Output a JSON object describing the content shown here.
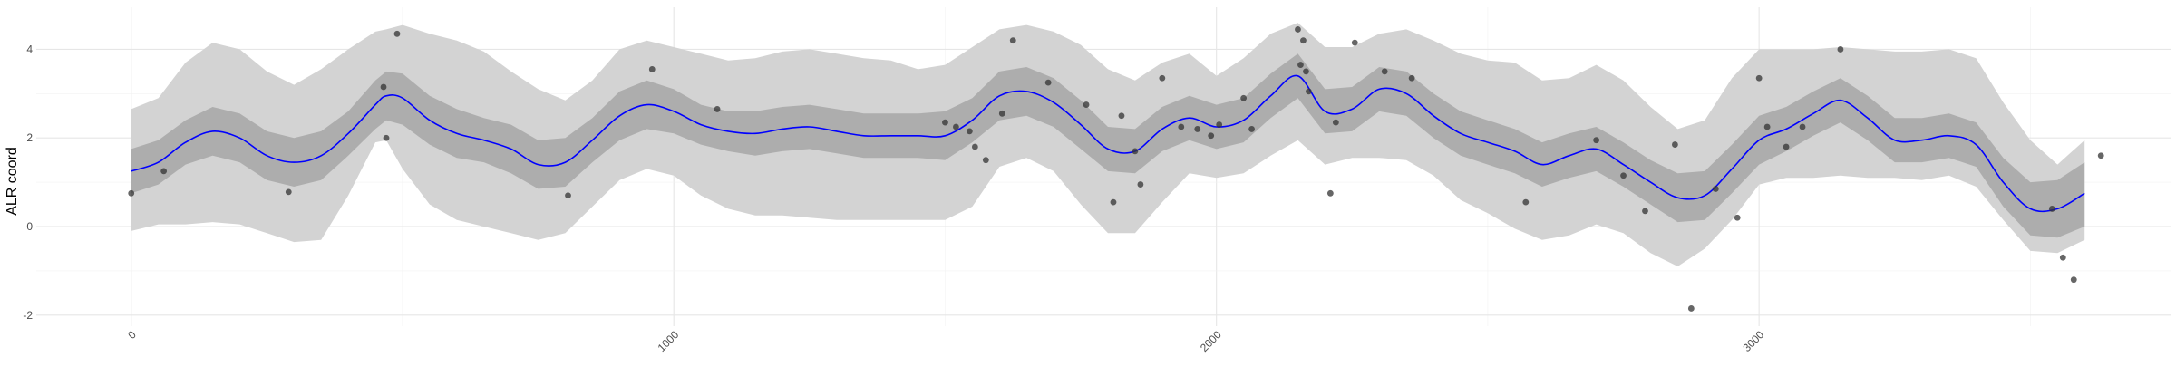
{
  "chart_data": {
    "type": "line",
    "title": "",
    "xlabel": "",
    "ylabel": "ALR coord",
    "xlim": [
      -175,
      3760
    ],
    "ylim": [
      -2.25,
      4.95
    ],
    "x_ticks": [
      0,
      1000,
      2000,
      3000
    ],
    "x_tick_labels": [
      "0",
      "1000",
      "2000",
      "3000"
    ],
    "y_ticks": [
      -2,
      0,
      2,
      4
    ],
    "y_tick_labels": [
      "-2",
      "0",
      "2",
      "4"
    ],
    "grid": true,
    "legend": "none",
    "series": [
      {
        "kind": "smooth_line",
        "color": "#0000ff",
        "x": [
          0,
          50,
          100,
          150,
          200,
          250,
          300,
          350,
          400,
          450,
          470,
          500,
          550,
          600,
          650,
          700,
          750,
          800,
          850,
          900,
          950,
          1000,
          1050,
          1100,
          1150,
          1200,
          1250,
          1300,
          1350,
          1400,
          1450,
          1500,
          1550,
          1600,
          1650,
          1700,
          1750,
          1800,
          1850,
          1900,
          1950,
          2000,
          2050,
          2100,
          2150,
          2200,
          2250,
          2300,
          2350,
          2400,
          2450,
          2500,
          2550,
          2600,
          2650,
          2700,
          2750,
          2800,
          2850,
          2900,
          2950,
          3000,
          3050,
          3100,
          3150,
          3200,
          3250,
          3300,
          3350,
          3400,
          3450,
          3500,
          3550,
          3600
        ],
        "y": [
          1.25,
          1.45,
          1.9,
          2.15,
          2.0,
          1.6,
          1.45,
          1.6,
          2.1,
          2.75,
          2.95,
          2.9,
          2.4,
          2.1,
          1.95,
          1.75,
          1.4,
          1.45,
          1.95,
          2.5,
          2.75,
          2.6,
          2.3,
          2.15,
          2.1,
          2.2,
          2.25,
          2.15,
          2.05,
          2.05,
          2.05,
          2.05,
          2.4,
          2.95,
          3.05,
          2.8,
          2.3,
          1.75,
          1.7,
          2.2,
          2.45,
          2.25,
          2.4,
          2.95,
          3.4,
          2.6,
          2.65,
          3.1,
          3.0,
          2.5,
          2.1,
          1.9,
          1.7,
          1.4,
          1.6,
          1.75,
          1.4,
          1.0,
          0.65,
          0.7,
          1.3,
          1.95,
          2.2,
          2.55,
          2.85,
          2.45,
          1.95,
          1.95,
          2.05,
          1.85,
          1.0,
          0.4,
          0.4,
          0.75
        ]
      },
      {
        "kind": "ribbon_inner",
        "color": "#adadad",
        "x": [
          0,
          50,
          100,
          150,
          200,
          250,
          300,
          350,
          400,
          450,
          470,
          500,
          550,
          600,
          650,
          700,
          750,
          800,
          850,
          900,
          950,
          1000,
          1050,
          1100,
          1150,
          1200,
          1250,
          1300,
          1350,
          1400,
          1450,
          1500,
          1550,
          1600,
          1650,
          1700,
          1750,
          1800,
          1850,
          1900,
          1950,
          2000,
          2050,
          2100,
          2150,
          2200,
          2250,
          2300,
          2350,
          2400,
          2450,
          2500,
          2550,
          2600,
          2650,
          2700,
          2750,
          2800,
          2850,
          2900,
          2950,
          3000,
          3050,
          3100,
          3150,
          3200,
          3250,
          3300,
          3350,
          3400,
          3450,
          3500,
          3550,
          3600
        ],
        "lower": [
          0.75,
          0.95,
          1.4,
          1.6,
          1.45,
          1.05,
          0.9,
          1.05,
          1.6,
          2.2,
          2.4,
          2.3,
          1.85,
          1.55,
          1.45,
          1.2,
          0.85,
          0.9,
          1.45,
          1.95,
          2.2,
          2.1,
          1.85,
          1.7,
          1.6,
          1.7,
          1.75,
          1.65,
          1.55,
          1.55,
          1.55,
          1.5,
          1.9,
          2.4,
          2.5,
          2.25,
          1.75,
          1.25,
          1.2,
          1.7,
          1.95,
          1.75,
          1.9,
          2.45,
          2.9,
          2.1,
          2.15,
          2.6,
          2.5,
          2.0,
          1.6,
          1.4,
          1.2,
          0.9,
          1.1,
          1.25,
          0.9,
          0.5,
          0.1,
          0.15,
          0.75,
          1.4,
          1.7,
          2.05,
          2.35,
          1.95,
          1.45,
          1.45,
          1.55,
          1.35,
          0.45,
          -0.2,
          -0.25,
          0.0
        ],
        "upper": [
          1.75,
          1.95,
          2.4,
          2.7,
          2.55,
          2.15,
          2.0,
          2.15,
          2.6,
          3.3,
          3.5,
          3.45,
          2.95,
          2.65,
          2.45,
          2.3,
          1.95,
          2.0,
          2.45,
          3.05,
          3.3,
          3.1,
          2.75,
          2.6,
          2.6,
          2.7,
          2.75,
          2.65,
          2.55,
          2.55,
          2.55,
          2.6,
          2.9,
          3.5,
          3.6,
          3.35,
          2.85,
          2.25,
          2.2,
          2.7,
          2.95,
          2.75,
          2.9,
          3.45,
          3.9,
          3.1,
          3.15,
          3.6,
          3.5,
          3.0,
          2.6,
          2.4,
          2.2,
          1.9,
          2.1,
          2.25,
          1.9,
          1.5,
          1.2,
          1.25,
          1.85,
          2.5,
          2.7,
          3.05,
          3.35,
          2.95,
          2.45,
          2.45,
          2.55,
          2.35,
          1.55,
          1.0,
          1.05,
          1.45
        ]
      },
      {
        "kind": "ribbon_outer",
        "color": "#d3d3d3",
        "x": [
          0,
          50,
          100,
          150,
          200,
          250,
          300,
          350,
          400,
          450,
          470,
          500,
          550,
          600,
          650,
          700,
          750,
          800,
          850,
          900,
          950,
          1000,
          1050,
          1100,
          1150,
          1200,
          1250,
          1300,
          1350,
          1400,
          1450,
          1500,
          1550,
          1600,
          1650,
          1700,
          1750,
          1800,
          1850,
          1900,
          1950,
          2000,
          2050,
          2100,
          2150,
          2200,
          2250,
          2300,
          2350,
          2400,
          2450,
          2500,
          2550,
          2600,
          2650,
          2700,
          2750,
          2800,
          2850,
          2900,
          2950,
          3000,
          3050,
          3100,
          3150,
          3200,
          3250,
          3300,
          3350,
          3400,
          3450,
          3500,
          3550,
          3600
        ],
        "lower": [
          -0.1,
          0.05,
          0.05,
          0.1,
          0.05,
          -0.15,
          -0.35,
          -0.3,
          0.7,
          1.9,
          1.95,
          1.3,
          0.5,
          0.15,
          0.0,
          -0.15,
          -0.3,
          -0.15,
          0.45,
          1.05,
          1.3,
          1.15,
          0.7,
          0.4,
          0.25,
          0.25,
          0.2,
          0.15,
          0.15,
          0.15,
          0.15,
          0.15,
          0.45,
          1.35,
          1.55,
          1.25,
          0.5,
          -0.15,
          -0.15,
          0.55,
          1.2,
          1.1,
          1.2,
          1.6,
          1.95,
          1.4,
          1.55,
          1.55,
          1.5,
          1.15,
          0.6,
          0.3,
          -0.05,
          -0.3,
          -0.2,
          0.05,
          -0.15,
          -0.6,
          -0.9,
          -0.5,
          0.15,
          0.95,
          1.1,
          1.1,
          1.15,
          1.1,
          1.1,
          1.05,
          1.15,
          0.9,
          0.15,
          -0.55,
          -0.6,
          -0.3
        ],
        "upper": [
          2.65,
          2.9,
          3.7,
          4.15,
          4.0,
          3.5,
          3.2,
          3.55,
          4.0,
          4.4,
          4.45,
          4.55,
          4.35,
          4.2,
          3.95,
          3.5,
          3.1,
          2.85,
          3.3,
          4.0,
          4.2,
          4.05,
          3.9,
          3.75,
          3.8,
          3.95,
          4.0,
          3.9,
          3.8,
          3.75,
          3.55,
          3.65,
          4.05,
          4.45,
          4.55,
          4.4,
          4.1,
          3.55,
          3.3,
          3.7,
          3.9,
          3.4,
          3.8,
          4.35,
          4.6,
          4.05,
          4.05,
          4.35,
          4.45,
          4.2,
          3.9,
          3.75,
          3.7,
          3.3,
          3.35,
          3.65,
          3.3,
          2.7,
          2.2,
          2.4,
          3.35,
          4.0,
          4.0,
          4.0,
          4.05,
          4.0,
          3.95,
          3.95,
          4.0,
          3.8,
          2.8,
          1.95,
          1.4,
          1.95
        ]
      },
      {
        "kind": "points",
        "color": "#333333",
        "x": [
          0,
          60,
          290,
          465,
          470,
          490,
          805,
          960,
          1080,
          1500,
          1520,
          1545,
          1555,
          1575,
          1605,
          1625,
          1690,
          1760,
          1810,
          1825,
          1850,
          1860,
          1900,
          1935,
          1965,
          1990,
          2005,
          2050,
          2065,
          2150,
          2155,
          2160,
          2165,
          2170,
          2210,
          2220,
          2255,
          2310,
          2360,
          2570,
          2700,
          2750,
          2790,
          2845,
          2875,
          2920,
          2960,
          3000,
          3015,
          3050,
          3080,
          3150,
          3540,
          3560,
          3580,
          3630
        ],
        "y": [
          0.75,
          1.25,
          0.78,
          3.15,
          2.0,
          4.35,
          0.7,
          3.55,
          2.65,
          2.35,
          2.25,
          2.15,
          1.8,
          1.5,
          2.55,
          4.2,
          3.25,
          2.75,
          0.55,
          2.5,
          1.7,
          0.95,
          3.35,
          2.25,
          2.2,
          2.05,
          2.3,
          2.9,
          2.2,
          4.45,
          3.65,
          4.2,
          3.5,
          3.05,
          0.75,
          2.35,
          4.15,
          3.5,
          3.35,
          0.55,
          1.95,
          1.15,
          0.35,
          1.85,
          -1.85,
          0.85,
          0.2,
          3.35,
          2.25,
          1.8,
          2.25,
          4.0,
          0.4,
          -0.7,
          -1.2,
          1.6
        ]
      }
    ]
  }
}
